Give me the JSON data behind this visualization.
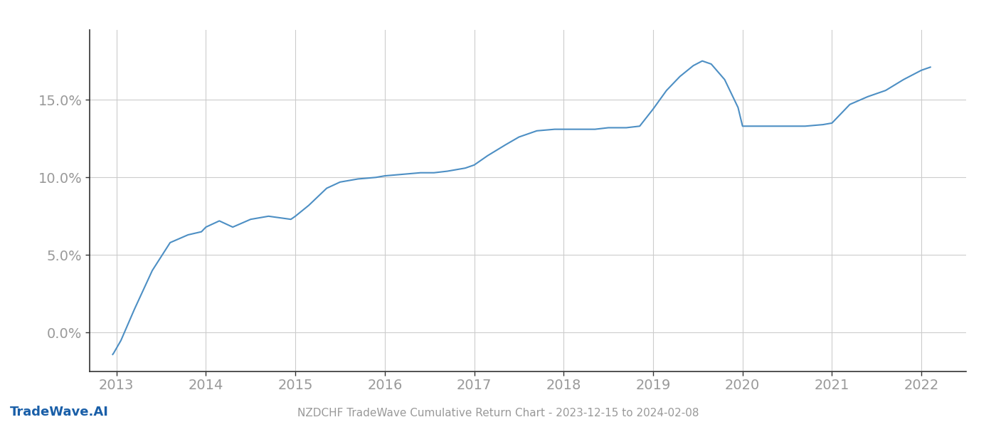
{
  "x_years": [
    2012.958,
    2012.97,
    2013.05,
    2013.2,
    2013.4,
    2013.6,
    2013.8,
    2013.95,
    2014.0,
    2014.15,
    2014.3,
    2014.5,
    2014.7,
    2014.95,
    2015.0,
    2015.15,
    2015.35,
    2015.5,
    2015.7,
    2015.9,
    2016.0,
    2016.2,
    2016.4,
    2016.55,
    2016.7,
    2016.9,
    2017.0,
    2017.15,
    2017.35,
    2017.5,
    2017.7,
    2017.9,
    2018.0,
    2018.15,
    2018.35,
    2018.5,
    2018.7,
    2018.85,
    2019.0,
    2019.15,
    2019.3,
    2019.45,
    2019.55,
    2019.65,
    2019.8,
    2019.95,
    2020.0,
    2020.15,
    2020.3,
    2020.5,
    2020.7,
    2020.9,
    2021.0,
    2021.2,
    2021.4,
    2021.6,
    2021.8,
    2022.0,
    2022.1
  ],
  "y_values": [
    -0.014,
    -0.013,
    -0.005,
    0.015,
    0.04,
    0.058,
    0.063,
    0.065,
    0.068,
    0.072,
    0.068,
    0.073,
    0.075,
    0.073,
    0.075,
    0.082,
    0.093,
    0.097,
    0.099,
    0.1,
    0.101,
    0.102,
    0.103,
    0.103,
    0.104,
    0.106,
    0.108,
    0.114,
    0.121,
    0.126,
    0.13,
    0.131,
    0.131,
    0.131,
    0.131,
    0.132,
    0.132,
    0.133,
    0.144,
    0.156,
    0.165,
    0.172,
    0.175,
    0.173,
    0.163,
    0.145,
    0.133,
    0.133,
    0.133,
    0.133,
    0.133,
    0.134,
    0.135,
    0.147,
    0.152,
    0.156,
    0.163,
    0.169,
    0.171
  ],
  "line_color": "#4d8fc4",
  "line_width": 1.5,
  "background_color": "#ffffff",
  "grid_color": "#cccccc",
  "spine_color": "#333333",
  "tick_color": "#999999",
  "title": "NZDCHF TradeWave Cumulative Return Chart - 2023-12-15 to 2024-02-08",
  "footer_left": "TradeWave.AI",
  "footer_color": "#1a5fa8",
  "ytick_labels": [
    "0.0%",
    "5.0%",
    "10.0%",
    "15.0%"
  ],
  "ytick_values": [
    0.0,
    0.05,
    0.1,
    0.15
  ],
  "xtick_values": [
    2013,
    2014,
    2015,
    2016,
    2017,
    2018,
    2019,
    2020,
    2021,
    2022
  ],
  "xlim": [
    2012.7,
    2022.5
  ],
  "ylim": [
    -0.025,
    0.195
  ]
}
